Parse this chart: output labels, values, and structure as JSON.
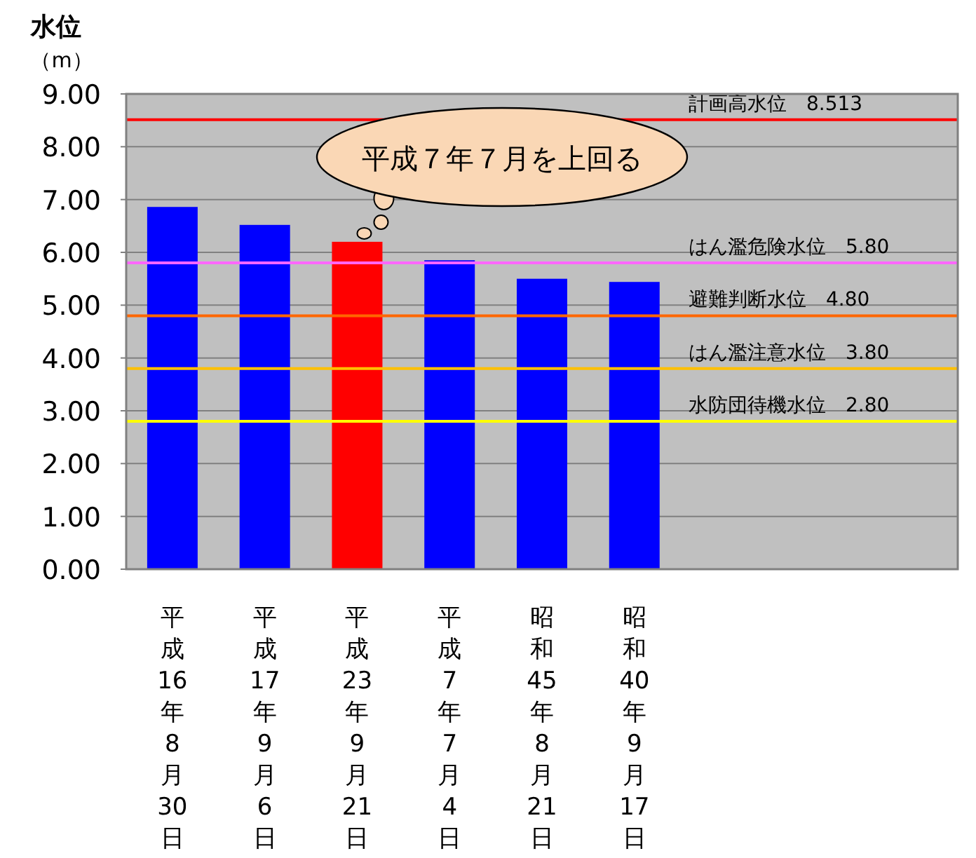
{
  "chart_data": {
    "type": "bar",
    "ylabel": "水位（m）",
    "categories": [
      "平成16年8月30日",
      "平成17年9月6日",
      "平成23年9月21日",
      "平成7年7月4日",
      "昭和45年8月21日",
      "昭和40年9月17日"
    ],
    "values": [
      6.86,
      6.52,
      6.2,
      5.85,
      5.5,
      5.44
    ],
    "colors": [
      "#0000ff",
      "#0000ff",
      "#ff0000",
      "#0000ff",
      "#0000ff",
      "#0000ff"
    ],
    "ylim": [
      0,
      9
    ],
    "yticks": [
      {
        "value": 0,
        "label": "0.00"
      },
      {
        "value": 1,
        "label": "1.00"
      },
      {
        "value": 2,
        "label": "2.00"
      },
      {
        "value": 3,
        "label": "3.00"
      },
      {
        "value": 4,
        "label": "4.00"
      },
      {
        "value": 5,
        "label": "5.00"
      },
      {
        "value": 6,
        "label": "6.00"
      },
      {
        "value": 7,
        "label": "7.00"
      },
      {
        "value": 8,
        "label": "8.00"
      },
      {
        "value": 9,
        "label": "9.00"
      }
    ],
    "grid": "y",
    "ref_lines": [
      {
        "axis": "y",
        "value": 8.513,
        "label": "計画高水位　8.513",
        "color": "#ff0000"
      },
      {
        "axis": "y",
        "value": 5.8,
        "label": "はん濫危険水位　5.80",
        "color": "#ff66ff"
      },
      {
        "axis": "y",
        "value": 4.8,
        "label": "避難判断水位　4.80",
        "color": "#ff6600"
      },
      {
        "axis": "y",
        "value": 3.8,
        "label": "はん濫注意水位　3.80",
        "color": "#ffc000"
      },
      {
        "axis": "y",
        "value": 2.8,
        "label": "水防団待機水位　2.80",
        "color": "#ffff00"
      }
    ],
    "annotations": [
      {
        "text": "平成７年７月を上回る",
        "x": "平成23年9月21日",
        "y": 6.2
      }
    ]
  }
}
